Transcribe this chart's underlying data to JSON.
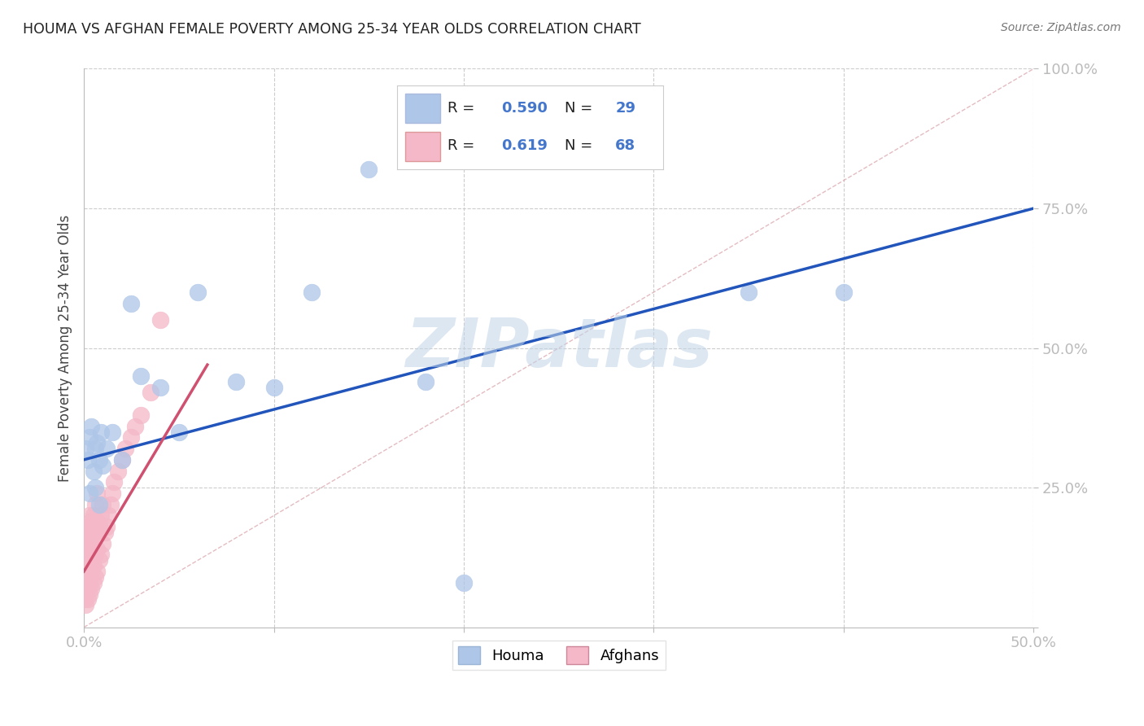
{
  "title": "HOUMA VS AFGHAN FEMALE POVERTY AMONG 25-34 YEAR OLDS CORRELATION CHART",
  "source": "Source: ZipAtlas.com",
  "ylabel": "Female Poverty Among 25-34 Year Olds",
  "xlim": [
    0.0,
    0.5
  ],
  "ylim": [
    0.0,
    1.0
  ],
  "houma_color": "#aec6e8",
  "afghan_color": "#f4b8c8",
  "houma_R": 0.59,
  "houma_N": 29,
  "afghan_R": 0.619,
  "afghan_N": 68,
  "watermark": "ZIPatlas",
  "watermark_color": "#c0d4e8",
  "legend_houma": "Houma",
  "legend_afghan": "Afghans",
  "houma_line_color": "#2255bb",
  "afghan_line_color": "#d05070",
  "diag_line_color": "#d8a0a8",
  "houma_x": [
    0.001,
    0.002,
    0.003,
    0.004,
    0.005,
    0.006,
    0.007,
    0.008,
    0.009,
    0.01,
    0.012,
    0.015,
    0.02,
    0.025,
    0.03,
    0.04,
    0.05,
    0.06,
    0.08,
    0.1,
    0.12,
    0.15,
    0.18,
    0.35,
    0.4,
    0.003,
    0.006,
    0.008,
    0.2
  ],
  "houma_y": [
    0.32,
    0.3,
    0.34,
    0.36,
    0.28,
    0.32,
    0.33,
    0.3,
    0.35,
    0.29,
    0.32,
    0.35,
    0.3,
    0.58,
    0.45,
    0.43,
    0.35,
    0.6,
    0.44,
    0.43,
    0.6,
    0.82,
    0.44,
    0.6,
    0.6,
    0.24,
    0.25,
    0.22,
    0.08
  ],
  "afghan_x": [
    0.0005,
    0.0005,
    0.001,
    0.001,
    0.001,
    0.001,
    0.001,
    0.001,
    0.001,
    0.001,
    0.001,
    0.001,
    0.0015,
    0.0015,
    0.002,
    0.002,
    0.002,
    0.002,
    0.002,
    0.002,
    0.002,
    0.0025,
    0.003,
    0.003,
    0.003,
    0.003,
    0.003,
    0.003,
    0.003,
    0.003,
    0.004,
    0.004,
    0.004,
    0.004,
    0.004,
    0.005,
    0.005,
    0.005,
    0.005,
    0.005,
    0.006,
    0.006,
    0.006,
    0.006,
    0.007,
    0.007,
    0.007,
    0.007,
    0.008,
    0.008,
    0.009,
    0.009,
    0.01,
    0.01,
    0.011,
    0.012,
    0.013,
    0.014,
    0.015,
    0.016,
    0.018,
    0.02,
    0.022,
    0.025,
    0.027,
    0.03,
    0.035,
    0.04
  ],
  "afghan_y": [
    0.05,
    0.08,
    0.04,
    0.06,
    0.07,
    0.08,
    0.09,
    0.1,
    0.12,
    0.14,
    0.16,
    0.18,
    0.07,
    0.11,
    0.05,
    0.07,
    0.08,
    0.1,
    0.12,
    0.15,
    0.17,
    0.09,
    0.06,
    0.08,
    0.1,
    0.12,
    0.14,
    0.16,
    0.18,
    0.2,
    0.07,
    0.1,
    0.13,
    0.16,
    0.19,
    0.08,
    0.11,
    0.14,
    0.17,
    0.2,
    0.09,
    0.13,
    0.17,
    0.22,
    0.1,
    0.14,
    0.19,
    0.24,
    0.12,
    0.18,
    0.13,
    0.2,
    0.15,
    0.22,
    0.17,
    0.18,
    0.2,
    0.22,
    0.24,
    0.26,
    0.28,
    0.3,
    0.32,
    0.34,
    0.36,
    0.38,
    0.42,
    0.55
  ],
  "houma_line_x": [
    0.0,
    0.5
  ],
  "houma_line_y": [
    0.3,
    0.75
  ],
  "afghan_line_x": [
    0.0,
    0.065
  ],
  "afghan_line_y": [
    0.1,
    0.47
  ]
}
